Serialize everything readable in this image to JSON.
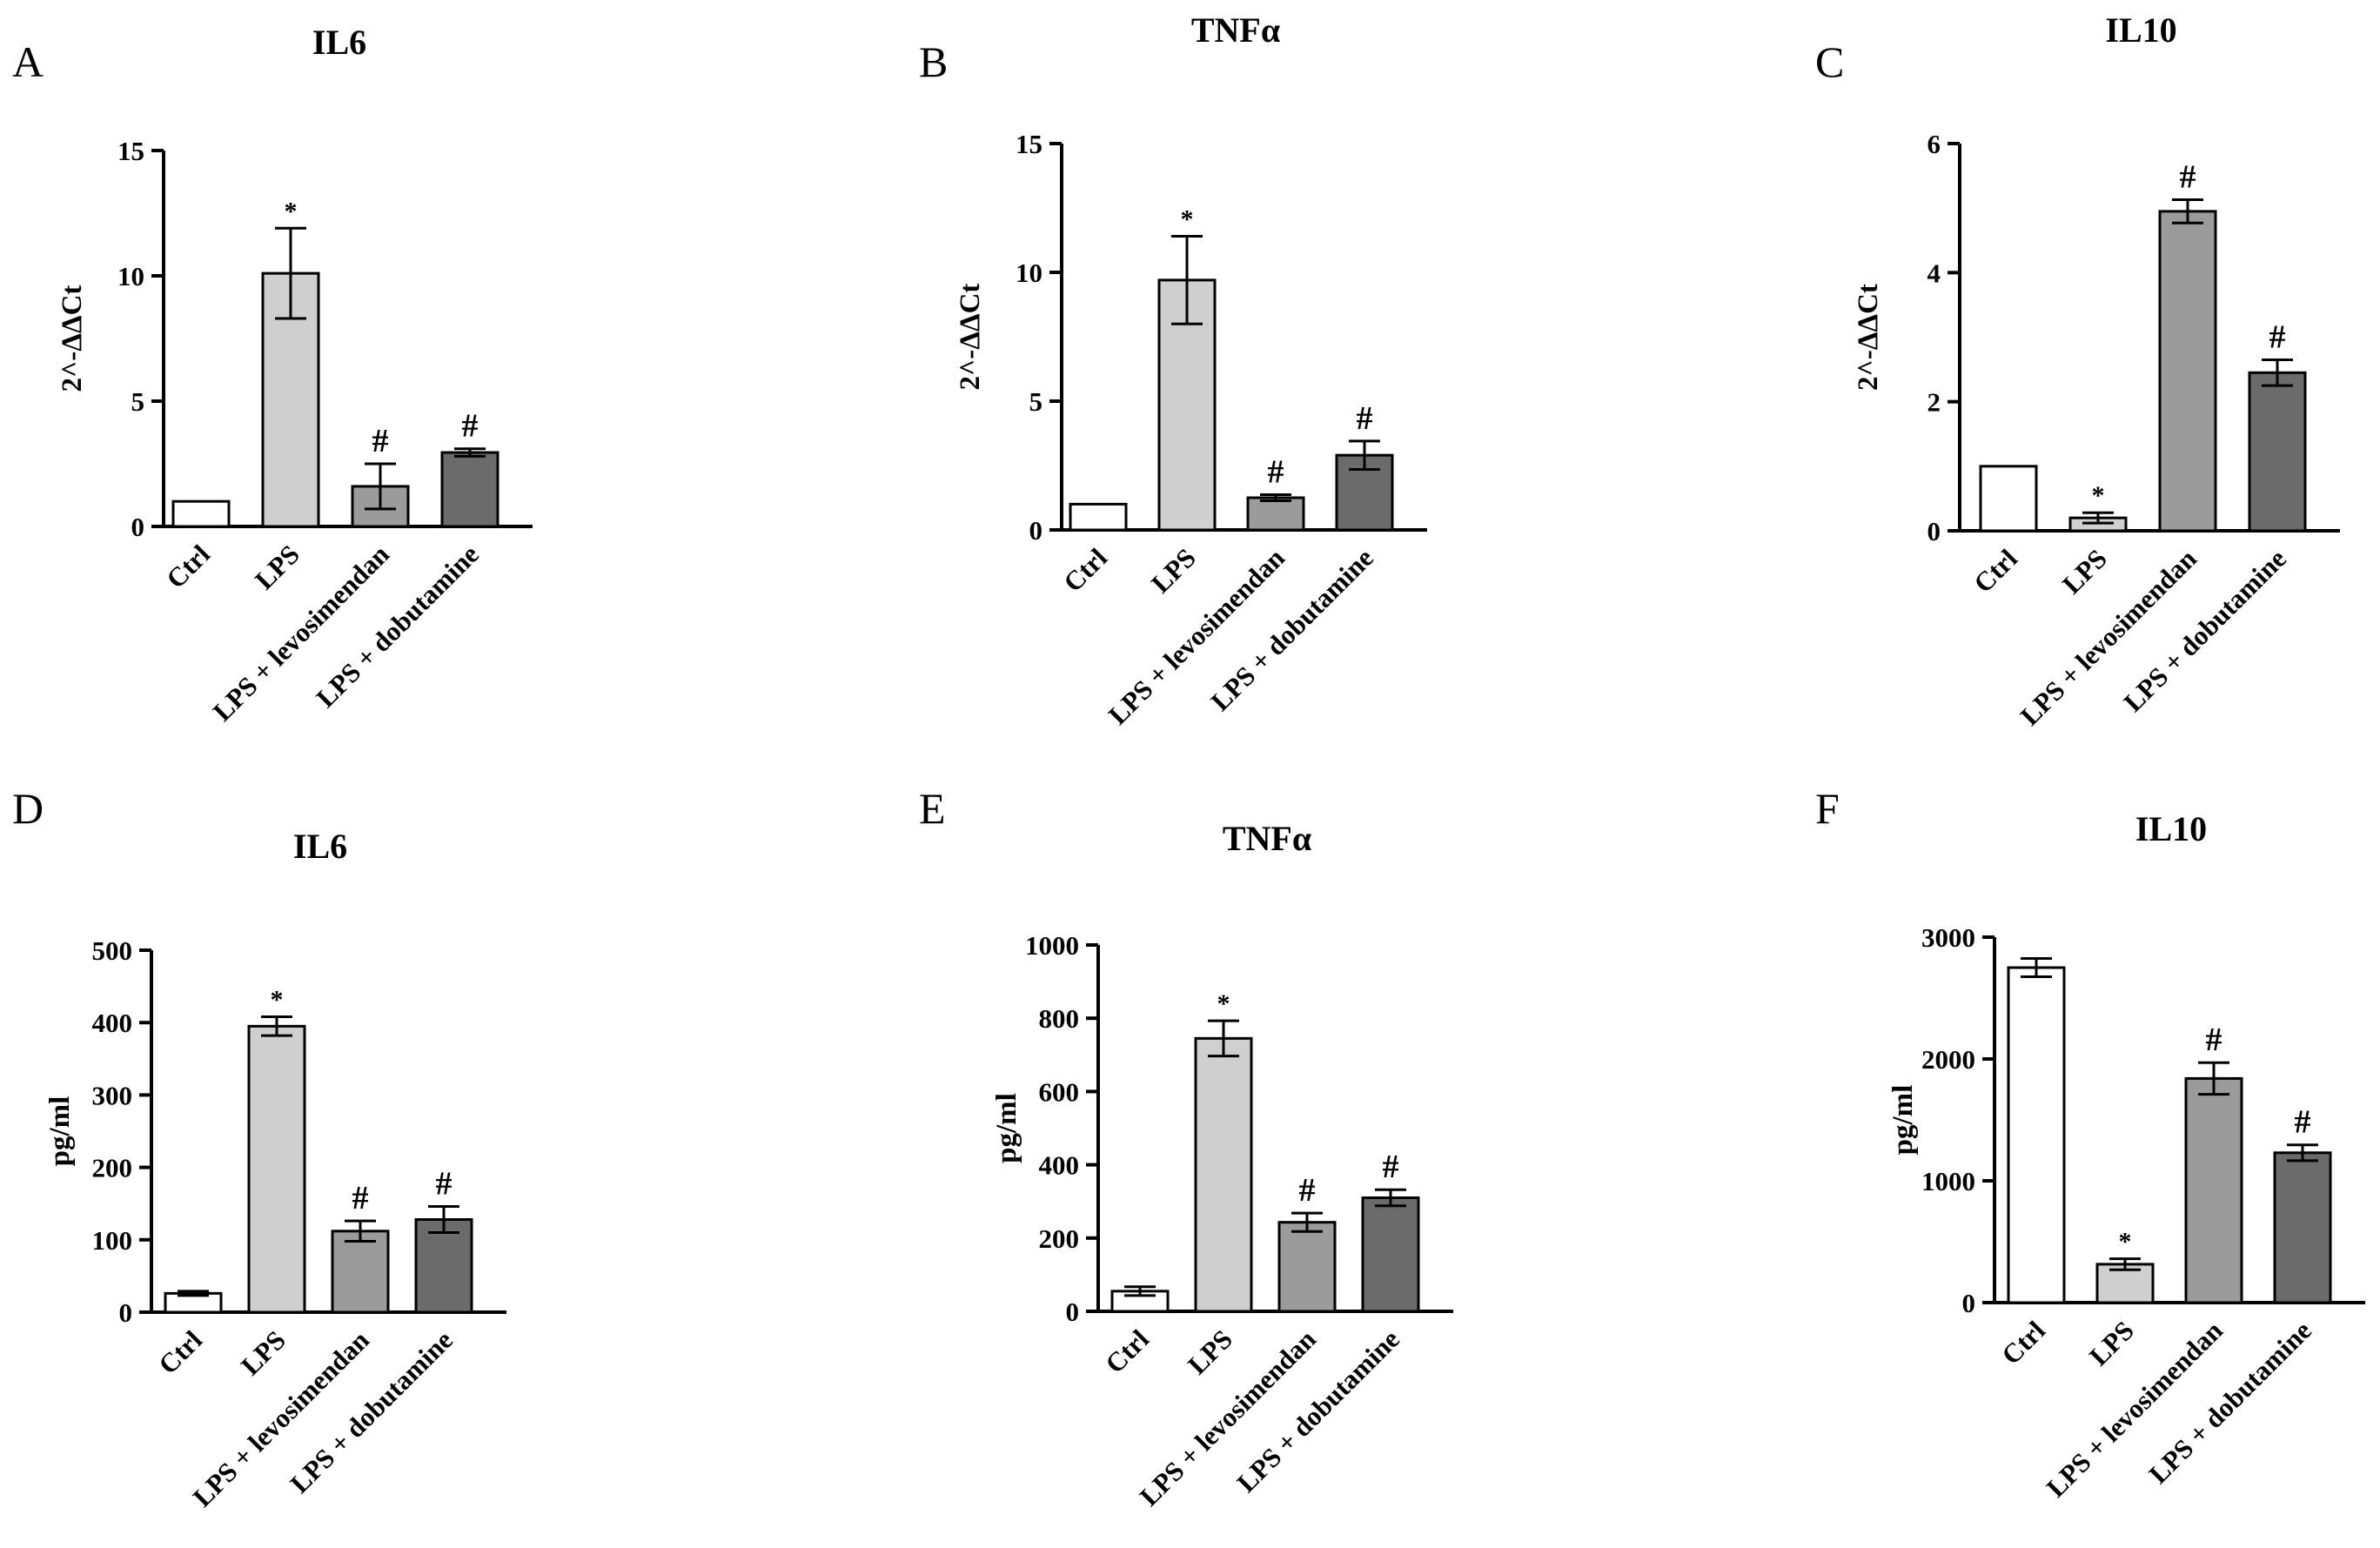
{
  "chart_data": [
    {
      "panel": "A",
      "type": "bar",
      "title": "IL6",
      "ylabel": "2^-ΔΔCt",
      "xlabel": "",
      "categories": [
        "Ctrl",
        "LPS",
        "LPS + levosimendan",
        "LPS + dobutamine"
      ],
      "values": [
        1.0,
        10.1,
        1.6,
        2.95
      ],
      "errors": [
        0,
        1.8,
        0.9,
        0.15
      ],
      "significance": [
        "",
        "*",
        "#",
        "#"
      ],
      "ylim": [
        0,
        15
      ],
      "yticks": [
        0,
        5,
        10,
        15
      ],
      "colors": [
        "#ffffff",
        "#cfcfcf",
        "#9b9b9b",
        "#6b6b6b"
      ]
    },
    {
      "panel": "B",
      "type": "bar",
      "title": "TNFα",
      "ylabel": "2^-ΔΔCt",
      "xlabel": "",
      "categories": [
        "Ctrl",
        "LPS",
        "LPS + levosimendan",
        "LPS + dobutamine"
      ],
      "values": [
        1.0,
        9.7,
        1.25,
        2.9
      ],
      "errors": [
        0,
        1.7,
        0.12,
        0.55
      ],
      "significance": [
        "",
        "*",
        "#",
        "#"
      ],
      "ylim": [
        0,
        15
      ],
      "yticks": [
        0,
        5,
        10,
        15
      ],
      "colors": [
        "#ffffff",
        "#cfcfcf",
        "#9b9b9b",
        "#6b6b6b"
      ]
    },
    {
      "panel": "C",
      "type": "bar",
      "title": "IL10",
      "ylabel": "2^-ΔΔCt",
      "xlabel": "",
      "categories": [
        "Ctrl",
        "LPS",
        "LPS + levosimendan",
        "LPS + dobutamine"
      ],
      "values": [
        1.0,
        0.2,
        4.95,
        2.45
      ],
      "errors": [
        0,
        0.08,
        0.18,
        0.2
      ],
      "significance": [
        "",
        "*",
        "#",
        "#"
      ],
      "ylim": [
        0,
        6
      ],
      "yticks": [
        0,
        2,
        4,
        6
      ],
      "colors": [
        "#ffffff",
        "#cfcfcf",
        "#9b9b9b",
        "#6b6b6b"
      ]
    },
    {
      "panel": "D",
      "type": "bar",
      "title": "IL6",
      "ylabel": "pg/ml",
      "xlabel": "",
      "categories": [
        "Ctrl",
        "LPS",
        "LPS + levosimendan",
        "LPS + dobutamine"
      ],
      "values": [
        26,
        395,
        112,
        128
      ],
      "errors": [
        3,
        13,
        14,
        18
      ],
      "significance": [
        "",
        "*",
        "#",
        "#"
      ],
      "ylim": [
        0,
        500
      ],
      "yticks": [
        0,
        100,
        200,
        300,
        400,
        500
      ],
      "colors": [
        "#ffffff",
        "#cfcfcf",
        "#9b9b9b",
        "#6b6b6b"
      ]
    },
    {
      "panel": "E",
      "type": "bar",
      "title": "TNFα",
      "ylabel": "pg/ml",
      "xlabel": "",
      "categories": [
        "Ctrl",
        "LPS",
        "LPS + levosimendan",
        "LPS + dobutamine"
      ],
      "values": [
        55,
        745,
        243,
        310
      ],
      "errors": [
        12,
        48,
        25,
        22
      ],
      "significance": [
        "",
        "*",
        "#",
        "#"
      ],
      "ylim": [
        0,
        1000
      ],
      "yticks": [
        0,
        200,
        400,
        600,
        800,
        1000
      ],
      "colors": [
        "#ffffff",
        "#cfcfcf",
        "#9b9b9b",
        "#6b6b6b"
      ]
    },
    {
      "panel": "F",
      "type": "bar",
      "title": "IL10",
      "ylabel": "pg/ml",
      "xlabel": "",
      "categories": [
        "Ctrl",
        "LPS",
        "LPS + levosimendan",
        "LPS + dobutamine"
      ],
      "values": [
        2750,
        315,
        1840,
        1230
      ],
      "errors": [
        75,
        45,
        130,
        65
      ],
      "significance": [
        "",
        "*",
        "#",
        "#"
      ],
      "ylim": [
        0,
        3000
      ],
      "yticks": [
        0,
        1000,
        2000,
        3000
      ],
      "colors": [
        "#ffffff",
        "#cfcfcf",
        "#9b9b9b",
        "#6b6b6b"
      ]
    }
  ]
}
